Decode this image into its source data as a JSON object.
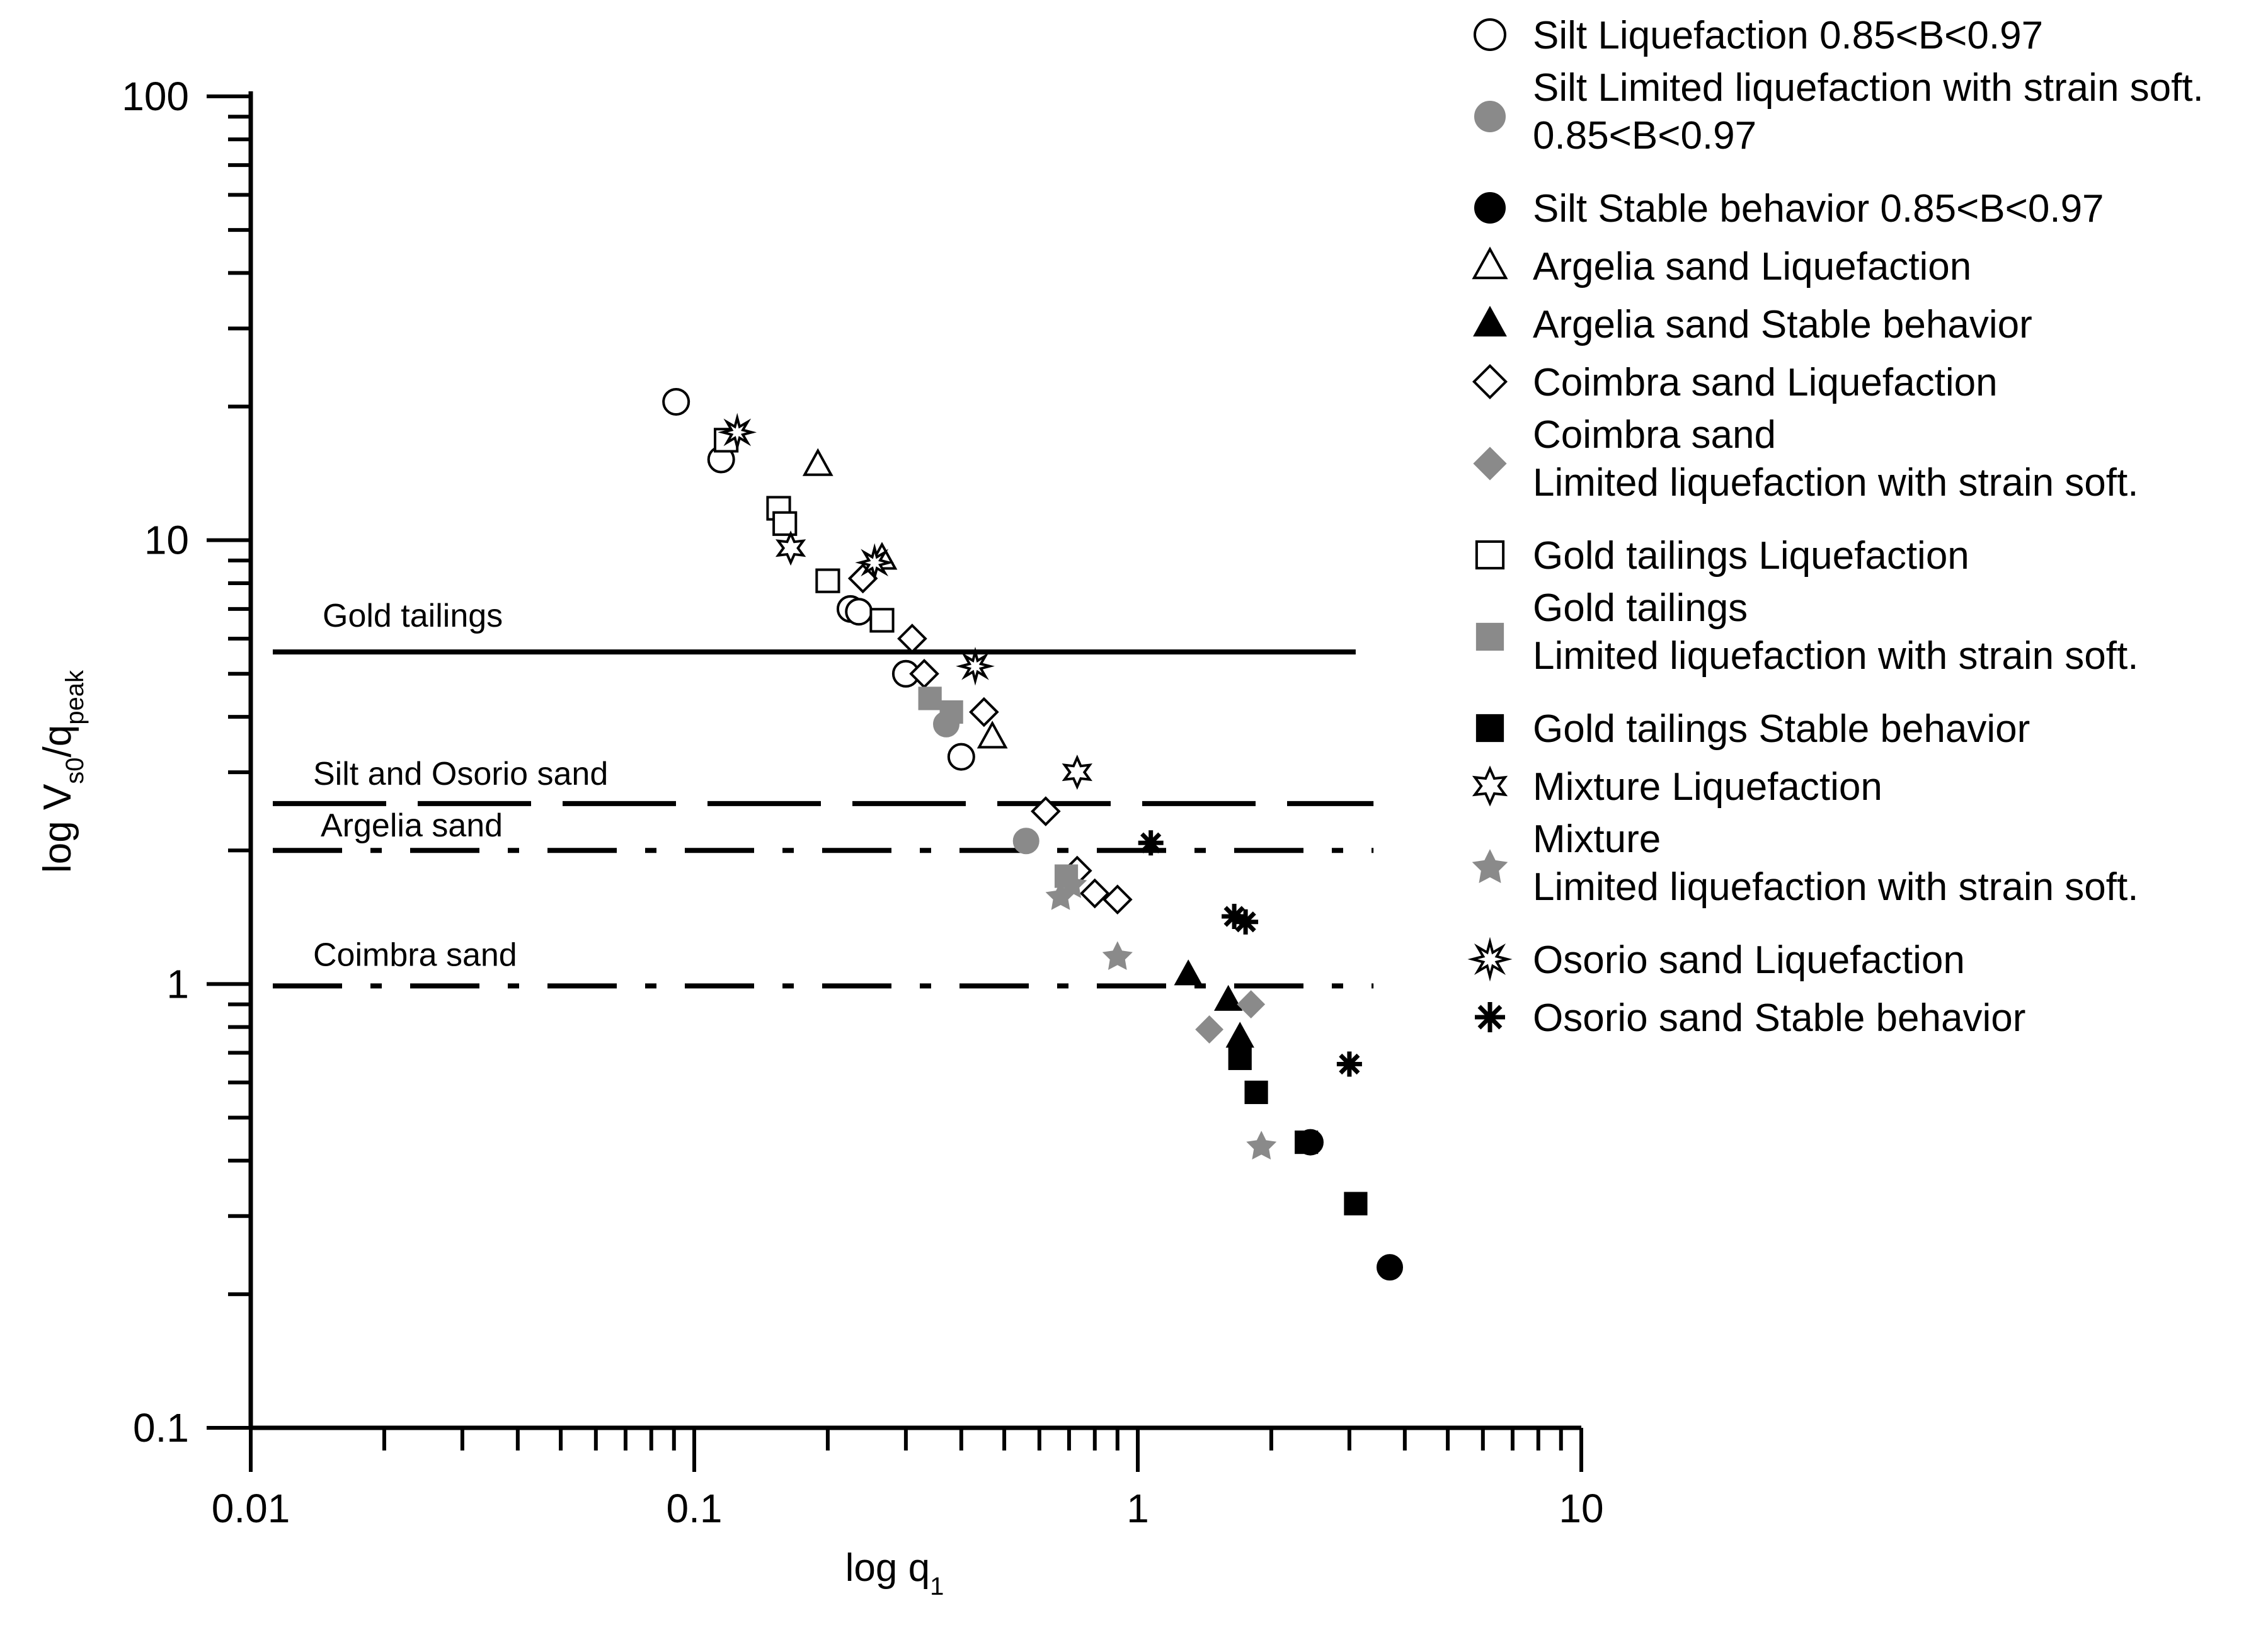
{
  "chart_data": {
    "type": "scatter",
    "xscale": "log",
    "yscale": "log",
    "xlim": [
      0.01,
      10
    ],
    "ylim": [
      0.1,
      100
    ],
    "xlabel_main": "log q",
    "xlabel_sub": "1",
    "ylabel_main": "log V",
    "ylabel_sub1": "s0",
    "ylabel_mid": "/q",
    "ylabel_sub2": "peak",
    "xticks": [
      {
        "value": 0.01,
        "label": "0.01"
      },
      {
        "value": 0.1,
        "label": "0.1"
      },
      {
        "value": 1,
        "label": "1"
      },
      {
        "value": 10,
        "label": "10"
      }
    ],
    "yticks": [
      {
        "value": 0.1,
        "label": "0.1"
      },
      {
        "value": 1,
        "label": "1"
      },
      {
        "value": 10,
        "label": "10"
      },
      {
        "value": 100,
        "label": "100"
      }
    ],
    "threshold_lines": [
      {
        "label": "Gold tailings",
        "y": 5.6,
        "x_from": 0.01,
        "x_to": 3.1,
        "style": "solid"
      },
      {
        "label": "Silt and Osorio sand",
        "y": 2.55,
        "x_from": 0.01,
        "x_to": 3.4,
        "style": "dash"
      },
      {
        "label": "Argelia sand",
        "y": 2.0,
        "x_from": 0.01,
        "x_to": 3.4,
        "style": "dashdot"
      },
      {
        "label": "Coimbra sand",
        "y": 0.99,
        "x_from": 0.01,
        "x_to": 3.4,
        "style": "dashdot"
      }
    ],
    "series": [
      {
        "name": "Silt Liquefaction 0.85<B<0.97",
        "marker": "circle-open",
        "points": [
          [
            0.091,
            20.5
          ],
          [
            0.115,
            15.2
          ],
          [
            0.225,
            7.0
          ],
          [
            0.235,
            6.9
          ],
          [
            0.3,
            5.0
          ],
          [
            0.4,
            3.25
          ]
        ]
      },
      {
        "name": "Silt Limited liquefaction with strain soft. 0.85<B<0.97",
        "marker": "circle-gray",
        "points": [
          [
            0.37,
            3.85
          ],
          [
            0.56,
            2.1
          ]
        ]
      },
      {
        "name": "Silt Stable behavior 0.85<B<0.97",
        "marker": "circle-black",
        "points": [
          [
            2.45,
            0.44
          ],
          [
            3.7,
            0.23
          ]
        ]
      },
      {
        "name": "Argelia sand Liquefaction",
        "marker": "triangle-open",
        "points": [
          [
            0.19,
            14.8
          ],
          [
            0.265,
            9.1
          ],
          [
            0.47,
            3.6
          ]
        ]
      },
      {
        "name": "Argelia sand Stable behavior",
        "marker": "triangle-black",
        "points": [
          [
            1.3,
            1.05
          ],
          [
            1.6,
            0.92
          ],
          [
            1.7,
            0.76
          ]
        ]
      },
      {
        "name": "Coimbra sand Liquefaction",
        "marker": "diamond-open",
        "points": [
          [
            0.24,
            8.2
          ],
          [
            0.31,
            6.0
          ],
          [
            0.33,
            5.0
          ],
          [
            0.45,
            4.1
          ],
          [
            0.62,
            2.45
          ],
          [
            0.73,
            1.8
          ],
          [
            0.8,
            1.6
          ],
          [
            0.9,
            1.55
          ]
        ]
      },
      {
        "name": "Coimbra sand Limited liquefaction with strain soft.",
        "marker": "diamond-gray",
        "points": [
          [
            1.45,
            0.79
          ],
          [
            1.8,
            0.9
          ]
        ]
      },
      {
        "name": "Gold tailings Liquefaction",
        "marker": "square-open",
        "points": [
          [
            0.118,
            16.8
          ],
          [
            0.155,
            11.8
          ],
          [
            0.16,
            10.9
          ],
          [
            0.2,
            8.1
          ],
          [
            0.265,
            6.6
          ]
        ]
      },
      {
        "name": "Gold tailings Limited liquefaction with strain soft.",
        "marker": "square-gray",
        "points": [
          [
            0.34,
            4.4
          ],
          [
            0.38,
            4.1
          ],
          [
            0.69,
            1.75
          ]
        ]
      },
      {
        "name": "Gold tailings Stable behavior",
        "marker": "square-black",
        "points": [
          [
            1.7,
            0.68
          ],
          [
            1.85,
            0.57
          ],
          [
            2.4,
            0.44
          ],
          [
            3.1,
            0.32
          ]
        ]
      },
      {
        "name": "Mixture Liquefaction",
        "marker": "star6-open",
        "points": [
          [
            0.165,
            9.6
          ],
          [
            0.73,
            3.0
          ]
        ]
      },
      {
        "name": "Mixture Limited liquefaction with strain soft.",
        "marker": "star5-gray",
        "points": [
          [
            0.67,
            1.57
          ],
          [
            0.71,
            1.67
          ],
          [
            0.9,
            1.15
          ],
          [
            1.9,
            0.43
          ]
        ]
      },
      {
        "name": "Osorio sand Liquefaction",
        "marker": "burst-open",
        "points": [
          [
            0.125,
            17.5
          ],
          [
            0.255,
            8.9
          ],
          [
            0.43,
            5.2
          ]
        ]
      },
      {
        "name": "Osorio sand Stable behavior",
        "marker": "asterisk-black",
        "points": [
          [
            1.07,
            2.08
          ],
          [
            1.65,
            1.42
          ],
          [
            1.75,
            1.38
          ],
          [
            3.0,
            0.66
          ]
        ]
      }
    ],
    "legend_position": "right"
  }
}
